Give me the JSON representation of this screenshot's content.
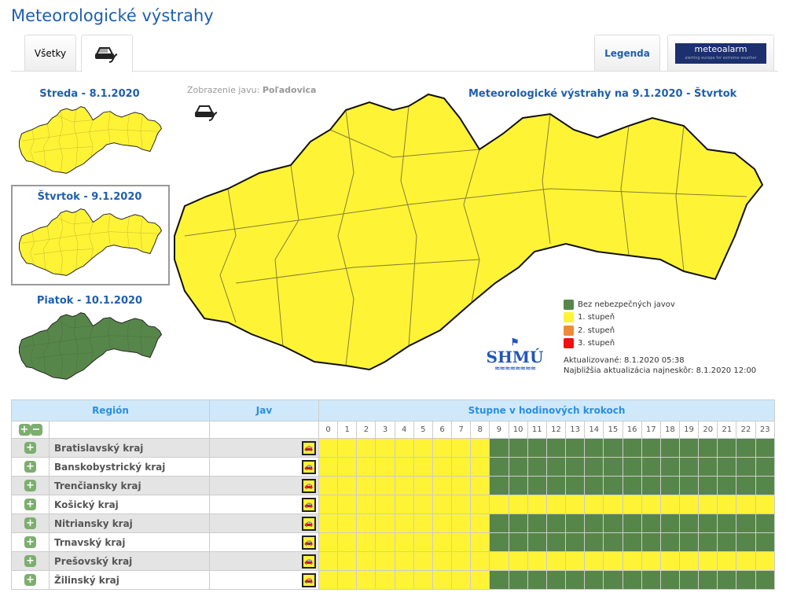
{
  "title": "Meteorologické výstrahy",
  "tabs": {
    "all": "Všetky",
    "icy_road": "icy-road-icon",
    "legend": "Legenda",
    "meteoalarm": "meteoalarm",
    "meteoalarm_tag": "alerting europe for extreme weather"
  },
  "days": [
    {
      "label": "Streda - 8.1.2020",
      "level": "1"
    },
    {
      "label": "Štvrtok - 9.1.2020",
      "level": "1",
      "selected": true
    },
    {
      "label": "Piatok - 10.1.2020",
      "level": "0"
    }
  ],
  "phenomenon": {
    "label": "Zobrazenie javu:",
    "value": "Poľadovica"
  },
  "map_title": "Meteorologické výstrahy na 9.1.2020 - Štvrtok",
  "legend": [
    {
      "label": "Bez nebezpečných javov",
      "color": "#57864a"
    },
    {
      "label": "1. stupeň",
      "color": "#fff336"
    },
    {
      "label": "2. stupeň",
      "color": "#f0883a"
    },
    {
      "label": "3. stupeň",
      "color": "#ee1111"
    }
  ],
  "logo": "SHMÚ",
  "updated": "Aktualizované: 8.1.2020 05:38",
  "next_update": "Najbližšia aktualizácia najneskôr: 8.1.2020 12:00",
  "table": {
    "headers": {
      "region": "Región",
      "jav": "Jav",
      "hours": "Stupne v hodinových krokoch"
    },
    "hours": [
      "0",
      "1",
      "2",
      "3",
      "4",
      "5",
      "6",
      "7",
      "8",
      "9",
      "10",
      "11",
      "12",
      "13",
      "14",
      "15",
      "16",
      "17",
      "18",
      "19",
      "20",
      "21",
      "22",
      "23"
    ],
    "rows": [
      {
        "name": "Bratislavský kraj",
        "yellow_until": 8
      },
      {
        "name": "Banskobystrický kraj",
        "yellow_until": 8
      },
      {
        "name": "Trenčiansky kraj",
        "yellow_until": 8
      },
      {
        "name": "Košický kraj",
        "yellow_until": 23
      },
      {
        "name": "Nitriansky kraj",
        "yellow_until": 8
      },
      {
        "name": "Trnavský kraj",
        "yellow_until": 8
      },
      {
        "name": "Prešovský kraj",
        "yellow_until": 23
      },
      {
        "name": "Žilinský kraj",
        "yellow_until": 8
      }
    ]
  }
}
